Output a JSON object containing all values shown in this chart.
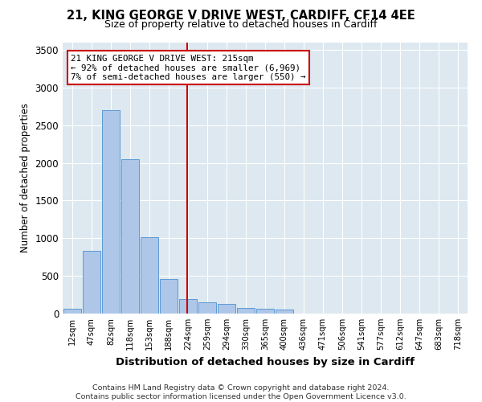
{
  "title_line1": "21, KING GEORGE V DRIVE WEST, CARDIFF, CF14 4EE",
  "title_line2": "Size of property relative to detached houses in Cardiff",
  "xlabel": "Distribution of detached houses by size in Cardiff",
  "ylabel": "Number of detached properties",
  "categories": [
    "12sqm",
    "47sqm",
    "82sqm",
    "118sqm",
    "153sqm",
    "188sqm",
    "224sqm",
    "259sqm",
    "294sqm",
    "330sqm",
    "365sqm",
    "400sqm",
    "436sqm",
    "471sqm",
    "506sqm",
    "541sqm",
    "577sqm",
    "612sqm",
    "647sqm",
    "683sqm",
    "718sqm"
  ],
  "values": [
    60,
    830,
    2700,
    2050,
    1010,
    460,
    195,
    150,
    125,
    70,
    65,
    50,
    0,
    0,
    0,
    0,
    0,
    0,
    0,
    0,
    0
  ],
  "bar_color": "#aec6e8",
  "bar_edge_color": "#5b9bd5",
  "annotation_text": "21 KING GEORGE V DRIVE WEST: 215sqm\n← 92% of detached houses are smaller (6,969)\n7% of semi-detached houses are larger (550) →",
  "annotation_box_color": "#ffffff",
  "annotation_box_edge": "#cc0000",
  "vline_color": "#cc0000",
  "ylim": [
    0,
    3600
  ],
  "yticks": [
    0,
    500,
    1000,
    1500,
    2000,
    2500,
    3000,
    3500
  ],
  "bg_color": "#dde8f0",
  "footer_line1": "Contains HM Land Registry data © Crown copyright and database right 2024.",
  "footer_line2": "Contains public sector information licensed under the Open Government Licence v3.0."
}
